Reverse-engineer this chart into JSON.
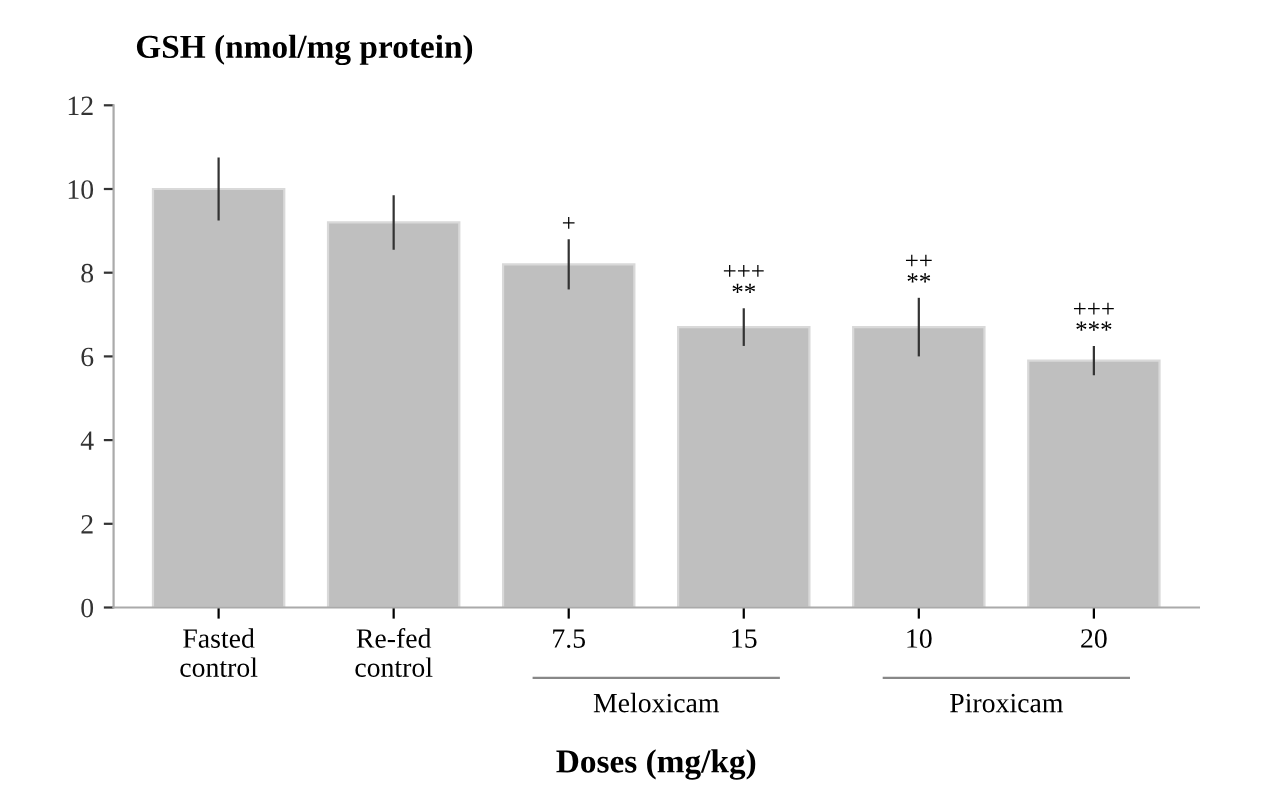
{
  "chart_data": {
    "type": "bar",
    "title": "GSH (nmol/mg protein)",
    "xlabel": "Doses (mg/kg)",
    "categories": [
      "Fasted\ncontrol",
      "Re-fed\ncontrol",
      "7.5",
      "15",
      "10",
      "20"
    ],
    "values": [
      10.0,
      9.2,
      8.2,
      6.7,
      6.7,
      5.9
    ],
    "errors": [
      0.75,
      0.65,
      0.6,
      0.45,
      0.7,
      0.35
    ],
    "color": "#bfbfbf",
    "ylim": [
      0,
      12
    ],
    "yticks": [
      0,
      2,
      4,
      6,
      8,
      10,
      12
    ],
    "grid": false,
    "legend": false,
    "annotations": [
      "+",
      "+++\n**",
      "++\n**",
      "+++\n***",
      "Meloxicam",
      "Piroxicam"
    ]
  }
}
